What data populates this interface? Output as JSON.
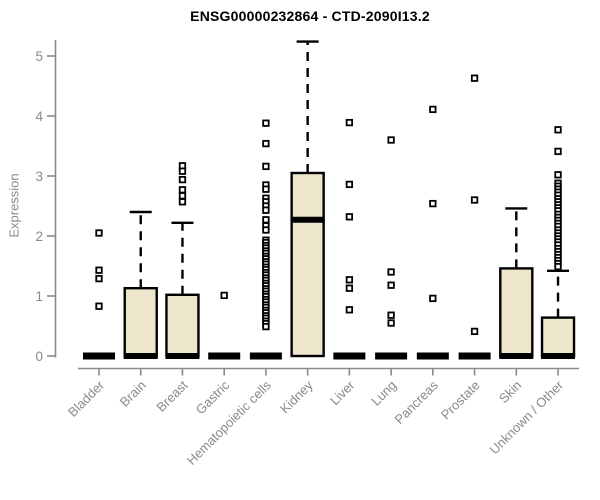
{
  "colors": {
    "box_fill": "#EDE6CD",
    "box_border": "#000000",
    "median": "#000000",
    "axis": "#8A8A8A",
    "outlier": "#000000",
    "title": "#000000"
  },
  "chart_data": {
    "type": "boxplot",
    "title": "ENSG00000232864 - CTD-2090I13.2",
    "xlabel": "",
    "ylabel": "Expression",
    "ylim": [
      0,
      5.3
    ],
    "yticks": [
      0,
      1,
      2,
      3,
      4,
      5
    ],
    "grid": false,
    "legend": "none",
    "categories": [
      "Bladder",
      "Brain",
      "Breast",
      "Gastric",
      "Hematopoietic cells",
      "Kidney",
      "Liver",
      "Lung",
      "Pancreas",
      "Prostate",
      "Skin",
      "Unknown / Other"
    ],
    "series": [
      {
        "category": "Bladder",
        "whisker_low": 0,
        "q1": 0,
        "median": 0,
        "q3": 0,
        "whisker_high": 0,
        "outliers": [
          2.05,
          1.43,
          1.29,
          0.83
        ]
      },
      {
        "category": "Brain",
        "whisker_low": 0,
        "q1": 0,
        "median": 0,
        "q3": 1.13,
        "whisker_high": 2.4,
        "outliers": []
      },
      {
        "category": "Breast",
        "whisker_low": 0,
        "q1": 0,
        "median": 0,
        "q3": 1.02,
        "whisker_high": 2.22,
        "outliers": [
          3.17,
          3.08,
          2.94,
          2.77,
          2.67,
          2.57
        ]
      },
      {
        "category": "Gastric",
        "whisker_low": 0,
        "q1": 0,
        "median": 0,
        "q3": 0,
        "whisker_high": 0,
        "outliers": [
          1.01
        ]
      },
      {
        "category": "Hematopoietic cells",
        "whisker_low": 0,
        "q1": 0,
        "median": 0,
        "q3": 0,
        "whisker_high": 0,
        "outliers": [
          3.88,
          3.54,
          3.16,
          2.85,
          2.78,
          2.63,
          2.57,
          2.5,
          2.43,
          2.27,
          2.17,
          2.1,
          1.93,
          1.89,
          1.84,
          1.8,
          1.75,
          1.71,
          1.66,
          1.62,
          1.57,
          1.53,
          1.48,
          1.44,
          1.39,
          1.35,
          1.3,
          1.26,
          1.21,
          1.17,
          1.12,
          1.08,
          1.03,
          0.99,
          0.94,
          0.9,
          0.85,
          0.81,
          0.76,
          0.72,
          0.67,
          0.63,
          0.58,
          0.54,
          0.49
        ]
      },
      {
        "category": "Kidney",
        "whisker_low": 0,
        "q1": 0,
        "median": 2.27,
        "q3": 3.05,
        "whisker_high": 5.24,
        "outliers": []
      },
      {
        "category": "Liver",
        "whisker_low": 0,
        "q1": 0,
        "median": 0,
        "q3": 0,
        "whisker_high": 0,
        "outliers": [
          3.89,
          2.86,
          2.32,
          1.27,
          1.13,
          0.77
        ]
      },
      {
        "category": "Lung",
        "whisker_low": 0,
        "q1": 0,
        "median": 0,
        "q3": 0,
        "whisker_high": 0,
        "outliers": [
          3.6,
          1.4,
          1.18,
          0.68,
          0.55
        ]
      },
      {
        "category": "Pancreas",
        "whisker_low": 0,
        "q1": 0,
        "median": 0,
        "q3": 0,
        "whisker_high": 0,
        "outliers": [
          4.11,
          2.54,
          0.96
        ]
      },
      {
        "category": "Prostate",
        "whisker_low": 0,
        "q1": 0,
        "median": 0,
        "q3": 0,
        "whisker_high": 0,
        "outliers": [
          4.63,
          2.6,
          0.41
        ]
      },
      {
        "category": "Skin",
        "whisker_low": 0,
        "q1": 0,
        "median": 0,
        "q3": 1.46,
        "whisker_high": 2.46,
        "outliers": []
      },
      {
        "category": "Unknown / Other",
        "whisker_low": 0,
        "q1": 0,
        "median": 0,
        "q3": 0.64,
        "whisker_high": 1.42,
        "outliers": [
          3.77,
          3.41,
          3.02,
          2.88,
          2.83,
          2.78,
          2.73,
          2.68,
          2.62,
          2.57,
          2.52,
          2.47,
          2.42,
          2.36,
          2.31,
          2.26,
          2.21,
          2.16,
          2.1,
          2.05,
          2.0,
          1.95,
          1.9,
          1.85,
          1.79,
          1.74,
          1.69,
          1.64,
          1.59,
          1.54,
          1.49
        ]
      }
    ]
  }
}
